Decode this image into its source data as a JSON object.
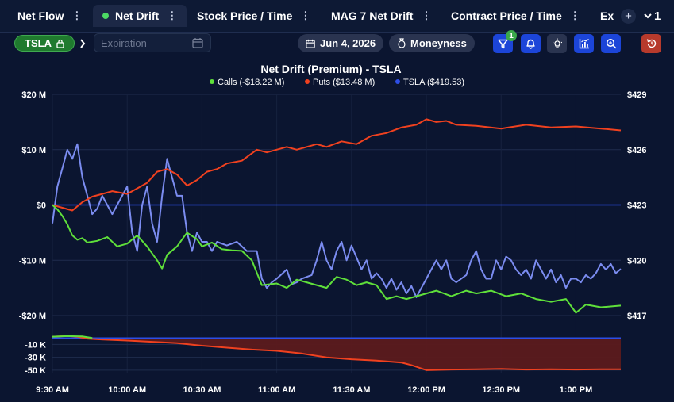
{
  "tabs": [
    {
      "label": "Net Flow",
      "active": false
    },
    {
      "label": "Net Drift",
      "active": true
    },
    {
      "label": "Stock Price / Time",
      "active": false
    },
    {
      "label": "MAG 7 Net Drift",
      "active": false
    },
    {
      "label": "Contract Price / Time",
      "active": false
    },
    {
      "label": "Ex",
      "active": false
    }
  ],
  "tab_menu_glyph": "⋮",
  "add_tab_label": "+",
  "overflow_label": "1",
  "toolbar": {
    "ticker": "TSLA",
    "expiration_placeholder": "Expiration",
    "date": "Jun 4, 2026",
    "moneyness": "Moneyness",
    "filter_badge": "1"
  },
  "colors": {
    "calls": "#5fe03a",
    "puts": "#f0411f",
    "tsla": "#7b8cf0",
    "zero_line": "#2d4ee6",
    "accent": "#1c45d8",
    "ticker_chip": "#1f7a2e",
    "reset_button": "#b73a2c"
  },
  "chart_data": {
    "type": "line",
    "title": "Net Drift (Premium) - TSLA",
    "legend_position": "top-center",
    "legend": [
      {
        "label": "Calls (-$18.22 M)",
        "color": "#5fe03a"
      },
      {
        "label": "Puts ($13.48 M)",
        "color": "#f0411f"
      },
      {
        "label": "TSLA ($419.53)",
        "color": "#2d4ee6"
      }
    ],
    "y_left_ticks": [
      "$20 M",
      "$10 M",
      "$0",
      "-$10 M",
      "-$20 M"
    ],
    "y_left_range": [
      -20,
      20
    ],
    "y_right_ticks": [
      "$429",
      "$426",
      "$423",
      "$420",
      "$417"
    ],
    "y_right_range": [
      417,
      429
    ],
    "x_ticks": [
      "9:30 AM",
      "10:00 AM",
      "10:30 AM",
      "11:00 AM",
      "11:30 AM",
      "12:00 PM",
      "12:30 PM",
      "1:00 PM"
    ],
    "x_tick_minutes": [
      570,
      600,
      630,
      660,
      690,
      720,
      750,
      780
    ],
    "x_range_minutes": [
      570,
      798
    ],
    "series": [
      {
        "name": "Calls",
        "unit": "$M",
        "x_minutes": [
          570,
          572,
          574,
          576,
          578,
          580,
          582,
          584,
          588,
          592,
          596,
          600,
          604,
          608,
          612,
          614,
          616,
          620,
          624,
          628,
          630,
          634,
          638,
          642,
          646,
          650,
          654,
          660,
          664,
          668,
          672,
          676,
          680,
          684,
          688,
          692,
          696,
          700,
          704,
          708,
          712,
          716,
          720,
          724,
          730,
          736,
          740,
          746,
          752,
          758,
          764,
          770,
          776,
          780,
          784,
          790,
          798
        ],
        "values": [
          0.0,
          -0.8,
          -2.0,
          -3.5,
          -5.5,
          -6.3,
          -6.0,
          -6.8,
          -6.5,
          -5.8,
          -7.5,
          -7.0,
          -5.5,
          -7.5,
          -10.0,
          -11.5,
          -9.0,
          -7.5,
          -5.0,
          -6.2,
          -7.5,
          -6.8,
          -8.0,
          -8.2,
          -8.3,
          -10.0,
          -14.5,
          -14.2,
          -15.0,
          -13.5,
          -14.0,
          -14.5,
          -15.0,
          -13.0,
          -13.5,
          -14.5,
          -14.0,
          -14.5,
          -17.0,
          -16.5,
          -17.0,
          -16.5,
          -16.0,
          -15.5,
          -16.5,
          -15.5,
          -16.0,
          -15.5,
          -16.5,
          -16.0,
          -17.0,
          -17.5,
          -17.0,
          -19.5,
          -18.0,
          -18.5,
          -18.2
        ]
      },
      {
        "name": "Puts",
        "unit": "$M",
        "x_minutes": [
          570,
          574,
          578,
          582,
          586,
          590,
          594,
          600,
          604,
          608,
          612,
          616,
          620,
          624,
          628,
          632,
          636,
          640,
          646,
          652,
          656,
          660,
          664,
          668,
          672,
          676,
          680,
          686,
          692,
          698,
          704,
          710,
          716,
          720,
          724,
          728,
          732,
          740,
          750,
          760,
          770,
          780,
          790,
          798
        ],
        "values": [
          0.0,
          -0.5,
          -1.0,
          0.5,
          1.5,
          2.0,
          2.5,
          2.0,
          3.0,
          4.0,
          6.0,
          6.5,
          5.5,
          3.5,
          4.5,
          6.0,
          6.5,
          7.5,
          8.0,
          10.0,
          9.5,
          10.0,
          10.5,
          10.0,
          10.5,
          11.0,
          10.5,
          11.5,
          11.0,
          12.5,
          13.0,
          14.0,
          14.5,
          15.5,
          15.0,
          15.2,
          14.5,
          14.3,
          13.8,
          14.5,
          14.0,
          14.2,
          13.8,
          13.48
        ]
      },
      {
        "name": "TSLA",
        "unit": "$",
        "x_minutes": [
          570,
          572,
          574,
          576,
          578,
          580,
          582,
          584,
          586,
          588,
          590,
          592,
          594,
          596,
          598,
          600,
          602,
          604,
          606,
          608,
          610,
          612,
          614,
          616,
          618,
          620,
          622,
          624,
          626,
          628,
          630,
          632,
          634,
          636,
          640,
          644,
          648,
          652,
          654,
          656,
          658,
          660,
          664,
          666,
          668,
          670,
          674,
          676,
          678,
          680,
          682,
          684,
          686,
          688,
          690,
          694,
          696,
          698,
          700,
          702,
          704,
          706,
          708,
          710,
          712,
          714,
          716,
          718,
          720,
          722,
          724,
          726,
          728,
          730,
          732,
          734,
          736,
          738,
          740,
          742,
          744,
          746,
          748,
          750,
          752,
          754,
          756,
          758,
          760,
          762,
          764,
          766,
          768,
          770,
          772,
          774,
          776,
          778,
          780,
          782,
          784,
          786,
          788,
          790,
          792,
          794,
          796,
          798
        ],
        "values": [
          422.0,
          424.0,
          425.0,
          426.0,
          425.5,
          426.3,
          424.5,
          423.5,
          422.5,
          422.8,
          423.5,
          423.0,
          422.5,
          423.0,
          423.5,
          424.0,
          421.5,
          420.5,
          423.0,
          424.0,
          422.0,
          421.0,
          423.5,
          425.5,
          424.5,
          423.5,
          423.5,
          421.5,
          420.5,
          421.5,
          421.0,
          421.0,
          420.5,
          421.0,
          420.8,
          421.0,
          420.5,
          420.5,
          419.0,
          418.5,
          418.8,
          419.0,
          419.5,
          418.7,
          418.8,
          419.0,
          419.2,
          420.0,
          421.0,
          420.0,
          419.5,
          420.5,
          421.0,
          420.0,
          420.8,
          419.5,
          420.0,
          419.0,
          419.3,
          419.0,
          418.5,
          419.0,
          418.4,
          418.8,
          418.2,
          418.6,
          418.0,
          418.5,
          419.0,
          419.5,
          420.0,
          419.5,
          420.0,
          419.0,
          418.8,
          419.0,
          419.2,
          420.0,
          420.5,
          419.5,
          419.0,
          419.0,
          420.0,
          419.5,
          420.2,
          420.0,
          419.5,
          419.2,
          419.5,
          419.0,
          420.0,
          419.5,
          419.0,
          419.5,
          418.8,
          419.2,
          418.5,
          419.0,
          419.0,
          418.8,
          419.2,
          419.0,
          419.3,
          419.8,
          419.5,
          419.8,
          419.3,
          419.53
        ]
      }
    ],
    "lower_panel": {
      "y_ticks": [
        "-10 K",
        "-30 K",
        "-50 K"
      ],
      "y_range": [
        -55,
        4
      ],
      "unit": "K",
      "x_minutes": [
        570,
        576,
        580,
        584,
        588,
        600,
        610,
        620,
        630,
        640,
        650,
        660,
        670,
        680,
        690,
        700,
        710,
        714,
        720,
        730,
        740,
        750,
        760,
        770,
        780,
        790,
        798
      ],
      "values": [
        2.0,
        3.0,
        2.0,
        -1.0,
        -2.0,
        -4.0,
        -6.0,
        -8.0,
        -12.0,
        -15.0,
        -18.0,
        -20.0,
        -24.0,
        -30.0,
        -33.0,
        -35.0,
        -38.0,
        -42.0,
        -50.0,
        -49.0,
        -48.5,
        -48.0,
        -49.0,
        -48.5,
        -49.0,
        -48.5,
        -48.5
      ]
    }
  }
}
